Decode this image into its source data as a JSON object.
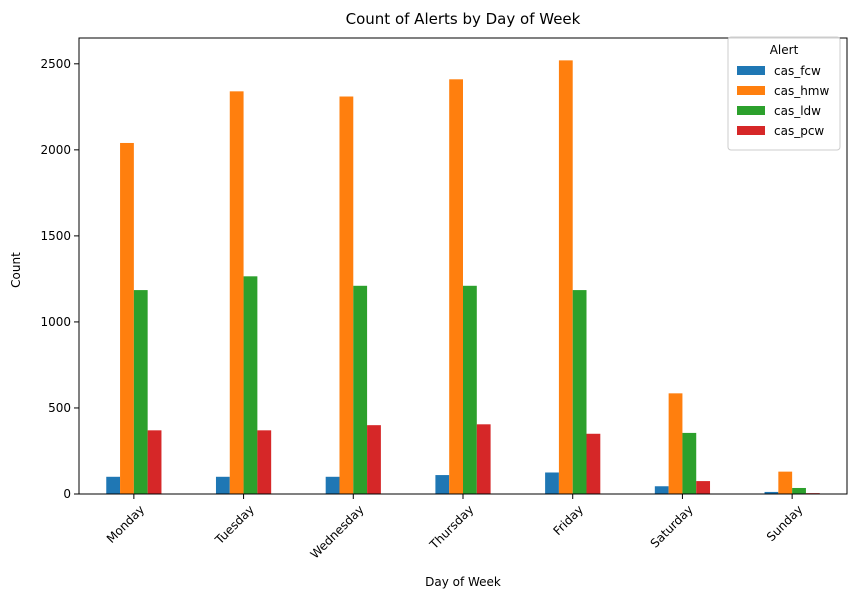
{
  "chart_data": {
    "type": "bar",
    "title": "Count of Alerts by Day of Week",
    "xlabel": "Day of Week",
    "ylabel": "Count",
    "categories": [
      "Monday",
      "Tuesday",
      "Wednesday",
      "Thursday",
      "Friday",
      "Saturday",
      "Sunday"
    ],
    "ylim": [
      0,
      2650
    ],
    "yticks": [
      0,
      500,
      1000,
      1500,
      2000,
      2500
    ],
    "grid": false,
    "legend": {
      "title": "Alert",
      "placement": "top-right"
    },
    "series": [
      {
        "name": "cas_fcw",
        "color": "#1f77b4",
        "values": [
          100,
          100,
          100,
          110,
          125,
          45,
          12
        ]
      },
      {
        "name": "cas_hmw",
        "color": "#ff7f0e",
        "values": [
          2040,
          2340,
          2310,
          2410,
          2520,
          585,
          130
        ]
      },
      {
        "name": "cas_ldw",
        "color": "#2ca02c",
        "values": [
          1185,
          1265,
          1210,
          1210,
          1185,
          355,
          35
        ]
      },
      {
        "name": "cas_pcw",
        "color": "#d62728",
        "values": [
          370,
          370,
          400,
          405,
          350,
          75,
          5
        ]
      }
    ]
  }
}
